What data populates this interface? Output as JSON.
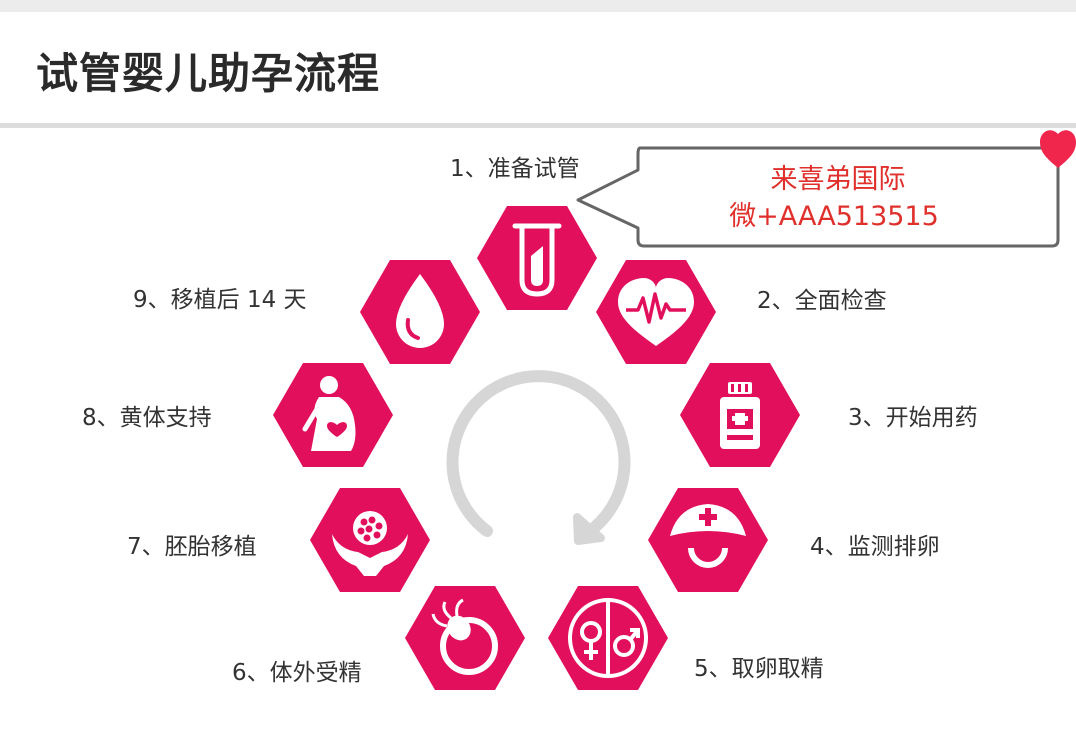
{
  "title": "试管婴儿助孕流程",
  "accent_color": "#e2105c",
  "steps": [
    {
      "label": "1、准备试管",
      "icon": "test-tube-icon"
    },
    {
      "label": "2、全面检查",
      "icon": "heartbeat-icon"
    },
    {
      "label": "3、开始用药",
      "icon": "medicine-bottle-icon"
    },
    {
      "label": "4、监测排卵",
      "icon": "nurse-cap-icon"
    },
    {
      "label": "5、取卵取精",
      "icon": "gender-symbols-icon"
    },
    {
      "label": "6、体外受精",
      "icon": "sperm-egg-icon"
    },
    {
      "label": "7、胚胎移植",
      "icon": "hands-embryo-icon"
    },
    {
      "label": "8、黄体支持",
      "icon": "pregnant-woman-icon"
    },
    {
      "label": "9、移植后 14 天",
      "icon": "drop-icon"
    }
  ],
  "callout": {
    "line1": "来喜弟国际",
    "line2": "微+AAA513515"
  }
}
